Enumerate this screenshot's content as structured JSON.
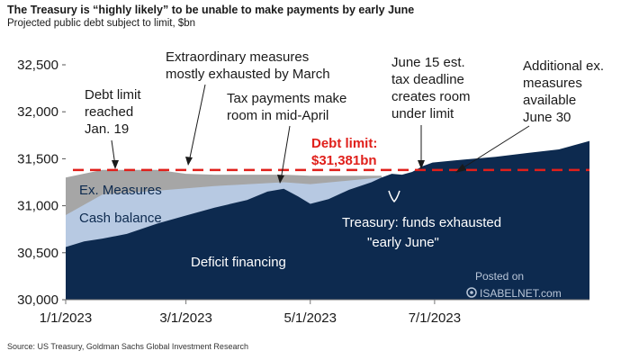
{
  "header": {
    "title": "The Treasury is “highly likely” to be unable to make payments by early June",
    "subtitle": "Projected public debt subject to limit, $bn"
  },
  "footer": {
    "source": "Source: US Treasury, Goldman Sachs Global Investment Research"
  },
  "watermark": {
    "posted_on": "Posted on",
    "site": "ISABELNET.com"
  },
  "annotations": {
    "debt_limit_reached_1": "Debt limit",
    "debt_limit_reached_2": "reached",
    "debt_limit_reached_3": "Jan. 19",
    "extraordinary_1": "Extraordinary measures",
    "extraordinary_2": "mostly exhausted by March",
    "tax_1": "Tax payments make",
    "tax_2": "room in mid-April",
    "june15_1": "June 15 est.",
    "june15_2": "tax deadline",
    "june15_3": "creates room",
    "june15_4": "under limit",
    "additional_1": "Additional ex.",
    "additional_2": "measures",
    "additional_3": "available",
    "additional_4": "June 30",
    "debt_limit_label_1": "Debt limit:",
    "debt_limit_label_2": "$31,381bn",
    "exhausted_1": "Treasury: funds exhausted",
    "exhausted_2": "\"early June\""
  },
  "colors": {
    "deficit": "#0d2a4f",
    "cash": "#b7c9e2",
    "ex_measures": "#a6a6a6",
    "debt_limit": "#e0201b"
  },
  "chart_data": {
    "type": "area",
    "title": "The Treasury is “highly likely” to be unable to make payments by early June",
    "subtitle": "Projected public debt subject to limit, $bn",
    "xlabel": "",
    "ylabel": "",
    "x_ticks": [
      "1/1/2023",
      "3/1/2023",
      "5/1/2023",
      "7/1/2023"
    ],
    "y_ticks": [
      "30,000",
      "30,500",
      "31,000",
      "31,500",
      "32,000",
      "32,500"
    ],
    "xlim": [
      "2023-01-01",
      "2023-09-15"
    ],
    "ylim": [
      30000,
      32500
    ],
    "grid": false,
    "debt_limit": 31381,
    "series": [
      {
        "name": "Deficit financing",
        "x": [
          "2023-01-01",
          "2023-01-10",
          "2023-01-19",
          "2023-01-31",
          "2023-02-15",
          "2023-02-28",
          "2023-03-15",
          "2023-03-31",
          "2023-04-10",
          "2023-04-18",
          "2023-04-25",
          "2023-05-01",
          "2023-05-10",
          "2023-05-20",
          "2023-05-31",
          "2023-06-05",
          "2023-06-10",
          "2023-06-15",
          "2023-06-20",
          "2023-06-25",
          "2023-06-30",
          "2023-07-15",
          "2023-07-31",
          "2023-08-15",
          "2023-08-31",
          "2023-09-15"
        ],
        "values": [
          30560,
          30620,
          30650,
          30700,
          30810,
          30890,
          30980,
          31060,
          31150,
          31180,
          31100,
          31020,
          31070,
          31170,
          31250,
          31300,
          31340,
          31330,
          31360,
          31420,
          31460,
          31490,
          31520,
          31560,
          31600,
          31690
        ]
      },
      {
        "name": "Cash balance",
        "x": [
          "2023-01-01",
          "2023-01-19",
          "2023-02-15",
          "2023-03-15",
          "2023-04-18",
          "2023-05-01",
          "2023-05-31",
          "2023-06-05"
        ],
        "values": [
          30900,
          31120,
          31160,
          31210,
          31250,
          31230,
          31290,
          31300
        ]
      },
      {
        "name": "Ex. Measures",
        "x": [
          "2023-01-01",
          "2023-01-19",
          "2023-02-15",
          "2023-03-01",
          "2023-03-15",
          "2023-04-18",
          "2023-05-01",
          "2023-05-31",
          "2023-06-05"
        ],
        "values": [
          31300,
          31381,
          31381,
          31340,
          31330,
          31330,
          31320,
          31320,
          31320
        ]
      }
    ]
  }
}
